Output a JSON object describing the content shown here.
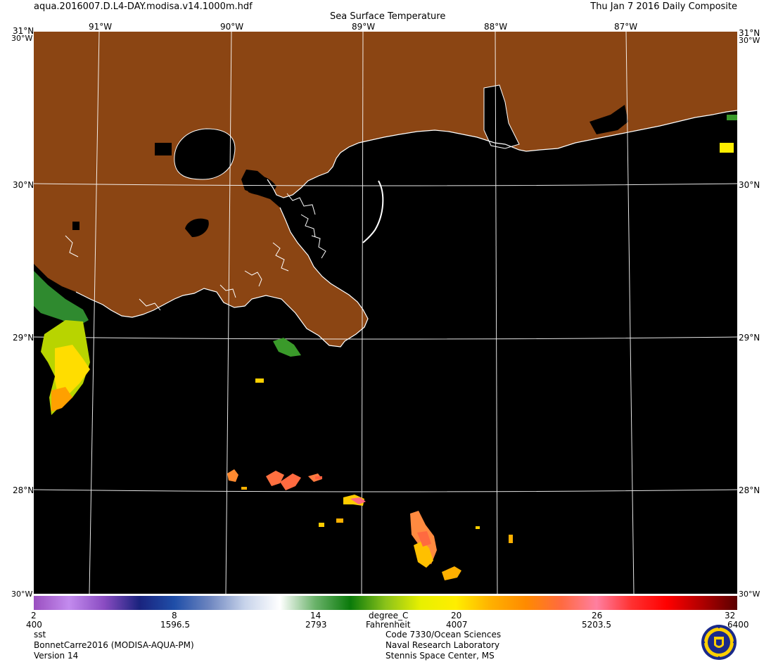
{
  "header": {
    "filename": "aqua.2016007.D.L4-DAY.modisa.v14.1000m.hdf",
    "date_label": "Thu Jan  7 2016 Daily Composite",
    "title": "Sea Surface Temperature"
  },
  "map": {
    "lat_labels": [
      "31°N",
      "30°N",
      "29°N",
      "28°N"
    ],
    "corner_top_label": "30°W",
    "corner_bottom_label": "30°W",
    "corner_top_right_lat": "31°N",
    "lon_labels": [
      "91°W",
      "90°W",
      "89°W",
      "88°W",
      "87°W"
    ],
    "colors": {
      "land": "#8b4513",
      "water": "#000000",
      "coast": "#ffffff",
      "grid": "#ffffff"
    }
  },
  "colorbar": {
    "celsius_ticks": [
      "2",
      "8",
      "14",
      "20",
      "26",
      "32"
    ],
    "fahrenheit_ticks": [
      "400",
      "1596.5",
      "2793",
      "4007",
      "5203.5",
      "6400"
    ],
    "unit_c": "degree_C",
    "unit_f": "Fahrenheit",
    "stops": [
      "#9a4fc0",
      "#c38bee",
      "#8a4cc2",
      "#1a237e",
      "#1f4ea8",
      "#6e86c0",
      "#c7d3ea",
      "#ffffff",
      "#6ab26a",
      "#0a7a0a",
      "#8ac21a",
      "#e8f000",
      "#ffee00",
      "#ffb000",
      "#ff8a00",
      "#ff6a40",
      "#ff7fa0",
      "#ff3030",
      "#ff0000",
      "#b00000",
      "#5a0000"
    ]
  },
  "footer": {
    "variable": "sst",
    "region": "BonnetCarre2016 (MODISA-AQUA-PM)",
    "version": "Version 14",
    "org_line1": "Code 7330/Ocean Sciences",
    "org_line2": "Naval Research Laboratory",
    "org_line3": "Stennis Space Center, MS"
  }
}
